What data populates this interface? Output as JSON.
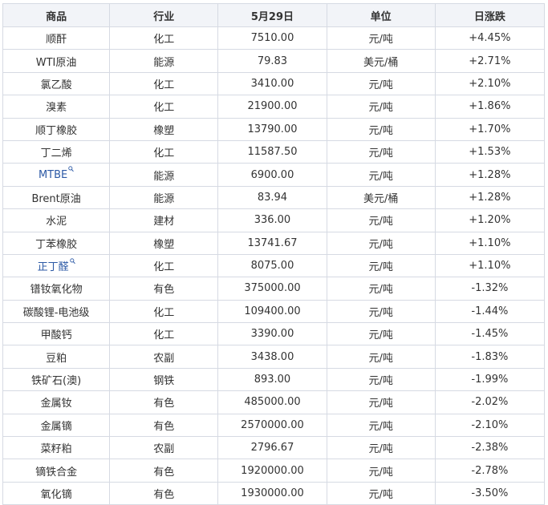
{
  "colors": {
    "up": "#e0211f",
    "down": "#14a049",
    "link": "#2d5aa6",
    "header_bg": "#f2f4f8",
    "border": "#d6dae3"
  },
  "headers": [
    "商品",
    "行业",
    "5月29日",
    "单位",
    "日涨跌"
  ],
  "rows": [
    {
      "name": "顺酐",
      "industry": "化工",
      "price": "7510.00",
      "unit": "元/吨",
      "change": "+4.45%",
      "dir": "up"
    },
    {
      "name": "WTI原油",
      "industry": "能源",
      "price": "79.83",
      "unit": "美元/桶",
      "change": "+2.71%",
      "dir": "up"
    },
    {
      "name": "氯乙酸",
      "industry": "化工",
      "price": "3410.00",
      "unit": "元/吨",
      "change": "+2.10%",
      "dir": "up"
    },
    {
      "name": "溴素",
      "industry": "化工",
      "price": "21900.00",
      "unit": "元/吨",
      "change": "+1.86%",
      "dir": "up"
    },
    {
      "name": "顺丁橡胶",
      "industry": "橡塑",
      "price": "13790.00",
      "unit": "元/吨",
      "change": "+1.70%",
      "dir": "up"
    },
    {
      "name": "丁二烯",
      "industry": "化工",
      "price": "11587.50",
      "unit": "元/吨",
      "change": "+1.53%",
      "dir": "up"
    },
    {
      "name": "MTBE",
      "industry": "能源",
      "price": "6900.00",
      "unit": "元/吨",
      "change": "+1.28%",
      "dir": "up",
      "link": true
    },
    {
      "name": "Brent原油",
      "industry": "能源",
      "price": "83.94",
      "unit": "美元/桶",
      "change": "+1.28%",
      "dir": "up"
    },
    {
      "name": "水泥",
      "industry": "建材",
      "price": "336.00",
      "unit": "元/吨",
      "change": "+1.20%",
      "dir": "up"
    },
    {
      "name": "丁苯橡胶",
      "industry": "橡塑",
      "price": "13741.67",
      "unit": "元/吨",
      "change": "+1.10%",
      "dir": "up"
    },
    {
      "name": "正丁醛",
      "industry": "化工",
      "price": "8075.00",
      "unit": "元/吨",
      "change": "+1.10%",
      "dir": "up",
      "link": true
    },
    {
      "name": "镨钕氧化物",
      "industry": "有色",
      "price": "375000.00",
      "unit": "元/吨",
      "change": "-1.32%",
      "dir": "down"
    },
    {
      "name": "碳酸锂-电池级",
      "industry": "化工",
      "price": "109400.00",
      "unit": "元/吨",
      "change": "-1.44%",
      "dir": "down"
    },
    {
      "name": "甲酸钙",
      "industry": "化工",
      "price": "3390.00",
      "unit": "元/吨",
      "change": "-1.45%",
      "dir": "down"
    },
    {
      "name": "豆粕",
      "industry": "农副",
      "price": "3438.00",
      "unit": "元/吨",
      "change": "-1.83%",
      "dir": "down"
    },
    {
      "name": "铁矿石(澳)",
      "industry": "钢铁",
      "price": "893.00",
      "unit": "元/吨",
      "change": "-1.99%",
      "dir": "down"
    },
    {
      "name": "金属钕",
      "industry": "有色",
      "price": "485000.00",
      "unit": "元/吨",
      "change": "-2.02%",
      "dir": "down"
    },
    {
      "name": "金属镝",
      "industry": "有色",
      "price": "2570000.00",
      "unit": "元/吨",
      "change": "-2.10%",
      "dir": "down"
    },
    {
      "name": "菜籽粕",
      "industry": "农副",
      "price": "2796.67",
      "unit": "元/吨",
      "change": "-2.38%",
      "dir": "down"
    },
    {
      "name": "镝铁合金",
      "industry": "有色",
      "price": "1920000.00",
      "unit": "元/吨",
      "change": "-2.78%",
      "dir": "down"
    },
    {
      "name": "氧化镝",
      "industry": "有色",
      "price": "1930000.00",
      "unit": "元/吨",
      "change": "-3.50%",
      "dir": "down"
    }
  ]
}
